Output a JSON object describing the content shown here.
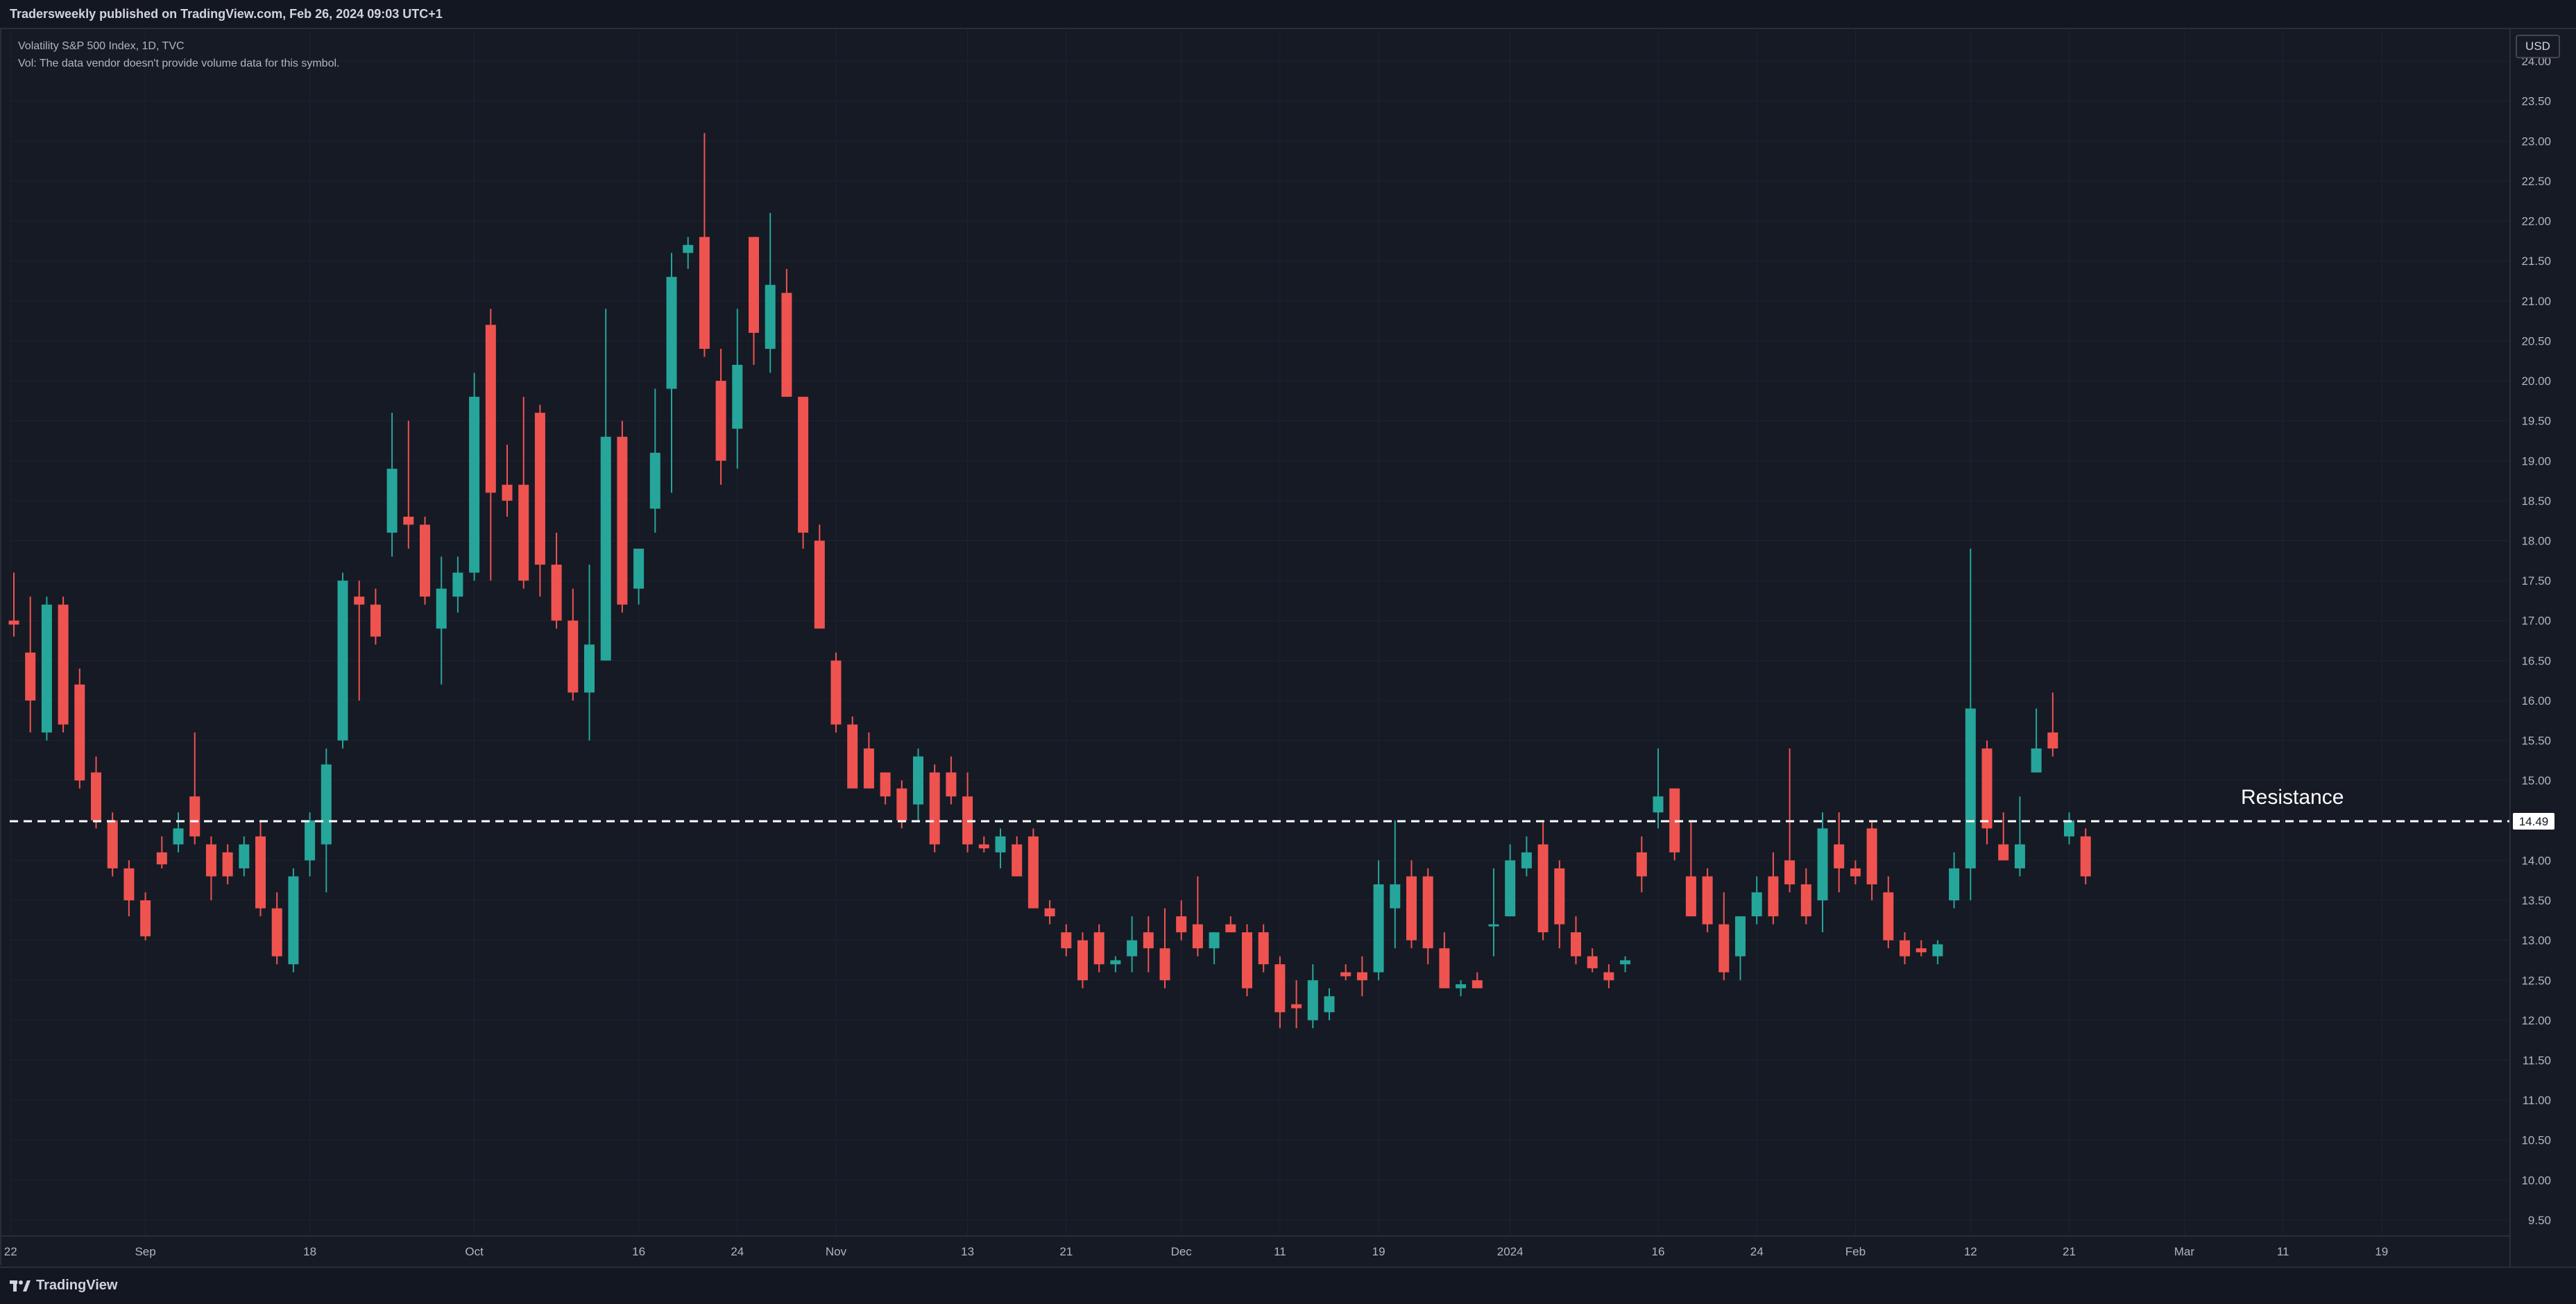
{
  "header": {
    "publisher_text": "Tradersweekly published on TradingView.com, Feb 26, 2024 09:03 UTC+1"
  },
  "legend": {
    "symbol_line": "Volatility S&P 500 Index, 1D, TVC",
    "volume_note": "Vol: The data vendor doesn't provide volume data for this symbol."
  },
  "price_scale": {
    "currency": "USD",
    "current_price_label": "14.49"
  },
  "footer": {
    "logo_text": "TradingView"
  },
  "colors": {
    "background": "#161a25",
    "up": "#26a69a",
    "down": "#ef5350",
    "grid": "#1f2330",
    "text": "#b2b5be"
  },
  "chart_data": {
    "type": "candlestick",
    "title": "Volatility S&P 500 Index, 1D, TVC",
    "ylim": [
      9.3,
      24.4
    ],
    "y_ticks": [
      "9.50",
      "10.00",
      "10.50",
      "11.00",
      "11.50",
      "12.00",
      "12.50",
      "13.00",
      "13.50",
      "14.00",
      "14.50",
      "15.00",
      "15.50",
      "16.00",
      "16.50",
      "17.00",
      "17.50",
      "18.00",
      "18.50",
      "19.00",
      "19.50",
      "20.00",
      "20.50",
      "21.00",
      "21.50",
      "22.00",
      "22.50",
      "23.00",
      "23.50",
      "24.00"
    ],
    "x_ticks": [
      {
        "label": "22",
        "index": -0.2
      },
      {
        "label": "Sep",
        "index": 8
      },
      {
        "label": "18",
        "index": 18
      },
      {
        "label": "Oct",
        "index": 28
      },
      {
        "label": "16",
        "index": 38
      },
      {
        "label": "24",
        "index": 44
      },
      {
        "label": "Nov",
        "index": 50
      },
      {
        "label": "13",
        "index": 58
      },
      {
        "label": "21",
        "index": 64
      },
      {
        "label": "Dec",
        "index": 71
      },
      {
        "label": "11",
        "index": 77
      },
      {
        "label": "19",
        "index": 83
      },
      {
        "label": "2024",
        "index": 91
      },
      {
        "label": "16",
        "index": 100
      },
      {
        "label": "24",
        "index": 106
      },
      {
        "label": "Feb",
        "index": 112
      },
      {
        "label": "12",
        "index": 119
      },
      {
        "label": "21",
        "index": 125
      },
      {
        "label": "Mar",
        "index": 132
      },
      {
        "label": "11",
        "index": 138
      },
      {
        "label": "19",
        "index": 144
      }
    ],
    "horizontal_line": {
      "value": 14.49,
      "style": "dashed",
      "label": "Resistance"
    },
    "candles": [
      {
        "o": 17.0,
        "h": 17.6,
        "l": 16.8,
        "c": 16.95
      },
      {
        "o": 16.6,
        "h": 17.3,
        "l": 15.6,
        "c": 16.0
      },
      {
        "o": 15.6,
        "h": 17.3,
        "l": 15.5,
        "c": 17.2
      },
      {
        "o": 17.2,
        "h": 17.3,
        "l": 15.6,
        "c": 15.7
      },
      {
        "o": 16.2,
        "h": 16.4,
        "l": 14.9,
        "c": 15.0
      },
      {
        "o": 15.1,
        "h": 15.3,
        "l": 14.4,
        "c": 14.5
      },
      {
        "o": 14.5,
        "h": 14.6,
        "l": 13.8,
        "c": 13.9
      },
      {
        "o": 13.9,
        "h": 14.0,
        "l": 13.3,
        "c": 13.5
      },
      {
        "o": 13.5,
        "h": 13.6,
        "l": 13.0,
        "c": 13.05
      },
      {
        "o": 14.1,
        "h": 14.3,
        "l": 13.9,
        "c": 13.95
      },
      {
        "o": 14.2,
        "h": 14.6,
        "l": 14.1,
        "c": 14.4
      },
      {
        "o": 14.8,
        "h": 15.6,
        "l": 14.2,
        "c": 14.3
      },
      {
        "o": 14.2,
        "h": 14.3,
        "l": 13.5,
        "c": 13.8
      },
      {
        "o": 14.1,
        "h": 14.2,
        "l": 13.7,
        "c": 13.8
      },
      {
        "o": 13.9,
        "h": 14.3,
        "l": 13.8,
        "c": 14.2
      },
      {
        "o": 14.3,
        "h": 14.5,
        "l": 13.3,
        "c": 13.4
      },
      {
        "o": 13.4,
        "h": 13.6,
        "l": 12.7,
        "c": 12.8
      },
      {
        "o": 12.7,
        "h": 13.9,
        "l": 12.6,
        "c": 13.8
      },
      {
        "o": 14.0,
        "h": 14.6,
        "l": 13.8,
        "c": 14.5
      },
      {
        "o": 14.2,
        "h": 15.4,
        "l": 13.6,
        "c": 15.2
      },
      {
        "o": 15.5,
        "h": 17.6,
        "l": 15.4,
        "c": 17.5
      },
      {
        "o": 17.3,
        "h": 17.5,
        "l": 16.0,
        "c": 17.2
      },
      {
        "o": 17.2,
        "h": 17.4,
        "l": 16.7,
        "c": 16.8
      },
      {
        "o": 18.1,
        "h": 19.6,
        "l": 17.8,
        "c": 18.9
      },
      {
        "o": 18.3,
        "h": 19.5,
        "l": 17.9,
        "c": 18.2
      },
      {
        "o": 18.2,
        "h": 18.3,
        "l": 17.2,
        "c": 17.3
      },
      {
        "o": 16.9,
        "h": 17.8,
        "l": 16.2,
        "c": 17.4
      },
      {
        "o": 17.3,
        "h": 17.8,
        "l": 17.1,
        "c": 17.6
      },
      {
        "o": 17.6,
        "h": 20.1,
        "l": 17.5,
        "c": 19.8
      },
      {
        "o": 20.7,
        "h": 20.9,
        "l": 17.5,
        "c": 18.6
      },
      {
        "o": 18.7,
        "h": 19.2,
        "l": 18.3,
        "c": 18.5
      },
      {
        "o": 18.7,
        "h": 19.8,
        "l": 17.4,
        "c": 17.5
      },
      {
        "o": 19.6,
        "h": 19.7,
        "l": 17.3,
        "c": 17.7
      },
      {
        "o": 17.7,
        "h": 18.1,
        "l": 16.9,
        "c": 17.0
      },
      {
        "o": 17.0,
        "h": 17.4,
        "l": 16.0,
        "c": 16.1
      },
      {
        "o": 16.1,
        "h": 17.7,
        "l": 15.5,
        "c": 16.7
      },
      {
        "o": 16.5,
        "h": 20.9,
        "l": 16.5,
        "c": 19.3
      },
      {
        "o": 19.3,
        "h": 19.5,
        "l": 17.1,
        "c": 17.2
      },
      {
        "o": 17.4,
        "h": 17.9,
        "l": 17.2,
        "c": 17.9
      },
      {
        "o": 18.4,
        "h": 19.9,
        "l": 18.1,
        "c": 19.1
      },
      {
        "o": 19.9,
        "h": 21.6,
        "l": 18.6,
        "c": 21.3
      },
      {
        "o": 21.6,
        "h": 21.8,
        "l": 21.4,
        "c": 21.7
      },
      {
        "o": 21.8,
        "h": 23.1,
        "l": 20.3,
        "c": 20.4
      },
      {
        "o": 20.0,
        "h": 20.4,
        "l": 18.7,
        "c": 19.0
      },
      {
        "o": 19.4,
        "h": 20.9,
        "l": 18.9,
        "c": 20.2
      },
      {
        "o": 21.8,
        "h": 21.8,
        "l": 20.2,
        "c": 20.6
      },
      {
        "o": 20.4,
        "h": 22.1,
        "l": 20.1,
        "c": 21.2
      },
      {
        "o": 21.1,
        "h": 21.4,
        "l": 19.8,
        "c": 19.8
      },
      {
        "o": 19.8,
        "h": 19.8,
        "l": 17.9,
        "c": 18.1
      },
      {
        "o": 18.0,
        "h": 18.2,
        "l": 16.9,
        "c": 16.9
      },
      {
        "o": 16.5,
        "h": 16.6,
        "l": 15.6,
        "c": 15.7
      },
      {
        "o": 15.7,
        "h": 15.8,
        "l": 14.9,
        "c": 14.9
      },
      {
        "o": 15.4,
        "h": 15.6,
        "l": 14.9,
        "c": 14.9
      },
      {
        "o": 15.1,
        "h": 15.1,
        "l": 14.7,
        "c": 14.8
      },
      {
        "o": 14.9,
        "h": 15.0,
        "l": 14.4,
        "c": 14.5
      },
      {
        "o": 14.7,
        "h": 15.4,
        "l": 14.5,
        "c": 15.3
      },
      {
        "o": 15.1,
        "h": 15.2,
        "l": 14.1,
        "c": 14.2
      },
      {
        "o": 15.1,
        "h": 15.3,
        "l": 14.7,
        "c": 14.8
      },
      {
        "o": 14.8,
        "h": 15.1,
        "l": 14.1,
        "c": 14.2
      },
      {
        "o": 14.2,
        "h": 14.3,
        "l": 14.1,
        "c": 14.15
      },
      {
        "o": 14.1,
        "h": 14.4,
        "l": 13.9,
        "c": 14.3
      },
      {
        "o": 14.2,
        "h": 14.3,
        "l": 13.8,
        "c": 13.8
      },
      {
        "o": 14.3,
        "h": 14.4,
        "l": 13.4,
        "c": 13.4
      },
      {
        "o": 13.4,
        "h": 13.5,
        "l": 13.2,
        "c": 13.3
      },
      {
        "o": 13.1,
        "h": 13.2,
        "l": 12.8,
        "c": 12.9
      },
      {
        "o": 13.0,
        "h": 13.1,
        "l": 12.4,
        "c": 12.5
      },
      {
        "o": 13.1,
        "h": 13.2,
        "l": 12.6,
        "c": 12.7
      },
      {
        "o": 12.7,
        "h": 12.8,
        "l": 12.6,
        "c": 12.75
      },
      {
        "o": 12.8,
        "h": 13.3,
        "l": 12.6,
        "c": 13.0
      },
      {
        "o": 13.1,
        "h": 13.3,
        "l": 12.6,
        "c": 12.9
      },
      {
        "o": 12.9,
        "h": 13.4,
        "l": 12.4,
        "c": 12.5
      },
      {
        "o": 13.3,
        "h": 13.5,
        "l": 13.0,
        "c": 13.1
      },
      {
        "o": 13.2,
        "h": 13.8,
        "l": 12.8,
        "c": 12.9
      },
      {
        "o": 12.9,
        "h": 13.1,
        "l": 12.7,
        "c": 13.1
      },
      {
        "o": 13.2,
        "h": 13.3,
        "l": 13.1,
        "c": 13.1
      },
      {
        "o": 13.1,
        "h": 13.2,
        "l": 12.3,
        "c": 12.4
      },
      {
        "o": 13.1,
        "h": 13.2,
        "l": 12.6,
        "c": 12.7
      },
      {
        "o": 12.7,
        "h": 12.8,
        "l": 11.9,
        "c": 12.1
      },
      {
        "o": 12.2,
        "h": 12.5,
        "l": 11.9,
        "c": 12.15
      },
      {
        "o": 12.0,
        "h": 12.7,
        "l": 11.9,
        "c": 12.5
      },
      {
        "o": 12.1,
        "h": 12.4,
        "l": 12.0,
        "c": 12.3
      },
      {
        "o": 12.6,
        "h": 12.7,
        "l": 12.5,
        "c": 12.55
      },
      {
        "o": 12.6,
        "h": 12.8,
        "l": 12.3,
        "c": 12.5
      },
      {
        "o": 12.6,
        "h": 14.0,
        "l": 12.5,
        "c": 13.7
      },
      {
        "o": 13.4,
        "h": 14.5,
        "l": 12.9,
        "c": 13.7
      },
      {
        "o": 13.8,
        "h": 14.0,
        "l": 12.9,
        "c": 13.0
      },
      {
        "o": 13.8,
        "h": 13.9,
        "l": 12.7,
        "c": 12.9
      },
      {
        "o": 12.9,
        "h": 13.1,
        "l": 12.4,
        "c": 12.4
      },
      {
        "o": 12.4,
        "h": 12.5,
        "l": 12.3,
        "c": 12.45
      },
      {
        "o": 12.5,
        "h": 12.6,
        "l": 12.4,
        "c": 12.4
      },
      {
        "o": 13.2,
        "h": 13.9,
        "l": 12.8,
        "c": 13.2
      },
      {
        "o": 13.3,
        "h": 14.2,
        "l": 13.3,
        "c": 14.0
      },
      {
        "o": 13.9,
        "h": 14.3,
        "l": 13.8,
        "c": 14.1
      },
      {
        "o": 14.2,
        "h": 14.5,
        "l": 13.0,
        "c": 13.1
      },
      {
        "o": 13.9,
        "h": 14.0,
        "l": 12.9,
        "c": 13.2
      },
      {
        "o": 13.1,
        "h": 13.3,
        "l": 12.7,
        "c": 12.8
      },
      {
        "o": 12.8,
        "h": 12.9,
        "l": 12.6,
        "c": 12.65
      },
      {
        "o": 12.6,
        "h": 12.7,
        "l": 12.4,
        "c": 12.5
      },
      {
        "o": 12.7,
        "h": 12.8,
        "l": 12.6,
        "c": 12.75
      },
      {
        "o": 14.1,
        "h": 14.3,
        "l": 13.6,
        "c": 13.8
      },
      {
        "o": 14.6,
        "h": 15.4,
        "l": 14.4,
        "c": 14.8
      },
      {
        "o": 14.9,
        "h": 14.9,
        "l": 14.0,
        "c": 14.1
      },
      {
        "o": 13.8,
        "h": 14.5,
        "l": 13.3,
        "c": 13.3
      },
      {
        "o": 13.8,
        "h": 13.9,
        "l": 13.1,
        "c": 13.2
      },
      {
        "o": 13.2,
        "h": 13.6,
        "l": 12.5,
        "c": 12.6
      },
      {
        "o": 12.8,
        "h": 13.3,
        "l": 12.5,
        "c": 13.3
      },
      {
        "o": 13.3,
        "h": 13.8,
        "l": 13.2,
        "c": 13.6
      },
      {
        "o": 13.8,
        "h": 14.1,
        "l": 13.2,
        "c": 13.3
      },
      {
        "o": 14.0,
        "h": 15.4,
        "l": 13.6,
        "c": 13.7
      },
      {
        "o": 13.7,
        "h": 13.9,
        "l": 13.2,
        "c": 13.3
      },
      {
        "o": 13.5,
        "h": 14.6,
        "l": 13.1,
        "c": 14.4
      },
      {
        "o": 14.2,
        "h": 14.6,
        "l": 13.6,
        "c": 13.9
      },
      {
        "o": 13.9,
        "h": 14.0,
        "l": 13.7,
        "c": 13.8
      },
      {
        "o": 14.4,
        "h": 14.5,
        "l": 13.5,
        "c": 13.7
      },
      {
        "o": 13.6,
        "h": 13.8,
        "l": 12.9,
        "c": 13.0
      },
      {
        "o": 13.0,
        "h": 13.1,
        "l": 12.7,
        "c": 12.8
      },
      {
        "o": 12.9,
        "h": 13.0,
        "l": 12.8,
        "c": 12.85
      },
      {
        "o": 12.8,
        "h": 13.0,
        "l": 12.7,
        "c": 12.95
      },
      {
        "o": 13.5,
        "h": 14.1,
        "l": 13.4,
        "c": 13.9
      },
      {
        "o": 13.9,
        "h": 17.9,
        "l": 13.5,
        "c": 15.9
      },
      {
        "o": 15.4,
        "h": 15.5,
        "l": 14.2,
        "c": 14.4
      },
      {
        "o": 14.2,
        "h": 14.6,
        "l": 14.0,
        "c": 14.0
      },
      {
        "o": 13.9,
        "h": 14.8,
        "l": 13.8,
        "c": 14.2
      },
      {
        "o": 15.1,
        "h": 15.9,
        "l": 15.1,
        "c": 15.4
      },
      {
        "o": 15.6,
        "h": 16.1,
        "l": 15.3,
        "c": 15.4
      },
      {
        "o": 14.3,
        "h": 14.6,
        "l": 14.2,
        "c": 14.5
      },
      {
        "o": 14.3,
        "h": 14.4,
        "l": 13.7,
        "c": 13.8
      }
    ]
  }
}
